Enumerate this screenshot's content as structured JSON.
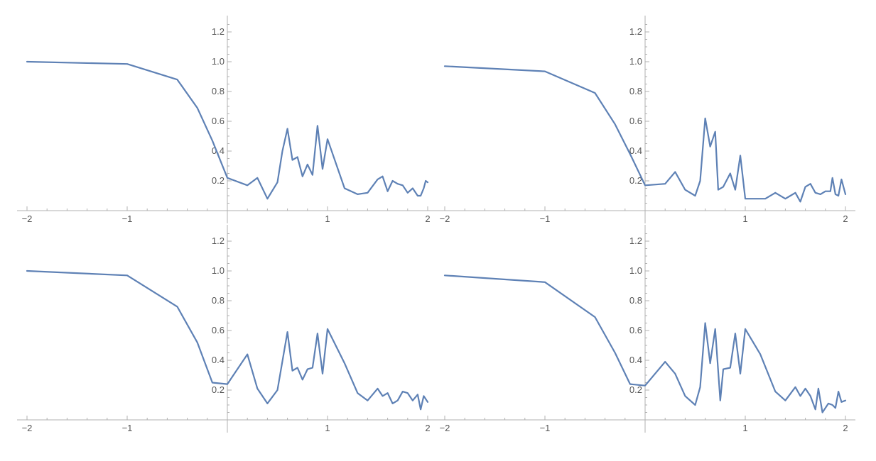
{
  "colors": {
    "series": "#5e81b5",
    "axis": "#b0b0b0",
    "text": "#555555"
  },
  "chart_data": [
    {
      "type": "line",
      "xlim": [
        -2,
        2
      ],
      "ylim": [
        0,
        1.25
      ],
      "xticks": [
        -2,
        -1,
        1,
        2
      ],
      "xtick_labels": [
        "−2",
        "−1",
        "1",
        "2"
      ],
      "yticks": [
        0.2,
        0.4,
        0.6,
        0.8,
        1.0,
        1.2
      ],
      "ytick_labels": [
        "0.2",
        "0.4",
        "0.6",
        "0.8",
        "1.0",
        "1.2"
      ],
      "series": [
        {
          "x": [
            -2,
            -1,
            -0.5,
            -0.3,
            -0.15,
            0,
            0.2,
            0.3,
            0.4,
            0.5,
            0.55,
            0.6,
            0.65,
            0.7,
            0.75,
            0.8,
            0.85,
            0.9,
            0.95,
            1.0,
            1.17,
            1.3,
            1.4,
            1.5,
            1.55,
            1.6,
            1.65,
            1.7,
            1.75,
            1.8,
            1.85,
            1.9,
            1.93,
            1.96,
            1.98,
            2.0
          ],
          "y": [
            1.0,
            0.985,
            0.88,
            0.69,
            0.47,
            0.22,
            0.17,
            0.22,
            0.08,
            0.19,
            0.4,
            0.55,
            0.34,
            0.36,
            0.23,
            0.31,
            0.24,
            0.57,
            0.28,
            0.48,
            0.15,
            0.11,
            0.12,
            0.21,
            0.23,
            0.13,
            0.2,
            0.18,
            0.17,
            0.12,
            0.15,
            0.1,
            0.1,
            0.15,
            0.2,
            0.19
          ]
        }
      ]
    },
    {
      "type": "line",
      "xlim": [
        -2,
        2
      ],
      "ylim": [
        0,
        1.25
      ],
      "xticks": [
        -2,
        -1,
        1,
        2
      ],
      "xtick_labels": [
        "−2",
        "−1",
        "1",
        "2"
      ],
      "yticks": [
        0.2,
        0.4,
        0.6,
        0.8,
        1.0,
        1.2
      ],
      "ytick_labels": [
        "0.2",
        "0.4",
        "0.6",
        "0.8",
        "1.0",
        "1.2"
      ],
      "series": [
        {
          "x": [
            -2,
            -1,
            -0.5,
            -0.3,
            -0.15,
            0,
            0.2,
            0.3,
            0.4,
            0.5,
            0.55,
            0.6,
            0.65,
            0.7,
            0.73,
            0.78,
            0.85,
            0.9,
            0.95,
            1.0,
            1.2,
            1.3,
            1.4,
            1.45,
            1.5,
            1.55,
            1.6,
            1.65,
            1.7,
            1.75,
            1.8,
            1.85,
            1.87,
            1.9,
            1.93,
            1.96,
            2.0
          ],
          "y": [
            0.97,
            0.935,
            0.79,
            0.58,
            0.38,
            0.17,
            0.18,
            0.26,
            0.14,
            0.1,
            0.2,
            0.62,
            0.43,
            0.53,
            0.14,
            0.16,
            0.25,
            0.14,
            0.37,
            0.08,
            0.08,
            0.12,
            0.08,
            0.1,
            0.12,
            0.06,
            0.16,
            0.18,
            0.12,
            0.11,
            0.13,
            0.13,
            0.22,
            0.11,
            0.1,
            0.21,
            0.11
          ]
        }
      ]
    },
    {
      "type": "line",
      "xlim": [
        -2,
        2
      ],
      "ylim": [
        0,
        1.25
      ],
      "xticks": [
        -2,
        -1,
        1,
        2
      ],
      "xtick_labels": [
        "−2",
        "−1",
        "1",
        "2"
      ],
      "yticks": [
        0.2,
        0.4,
        0.6,
        0.8,
        1.0,
        1.2
      ],
      "ytick_labels": [
        "0.2",
        "0.4",
        "0.6",
        "0.8",
        "1.0",
        "1.2"
      ],
      "series": [
        {
          "x": [
            -2,
            -1,
            -0.5,
            -0.3,
            -0.15,
            0,
            0.2,
            0.3,
            0.4,
            0.5,
            0.6,
            0.65,
            0.7,
            0.75,
            0.8,
            0.85,
            0.9,
            0.95,
            1.0,
            1.17,
            1.3,
            1.4,
            1.5,
            1.55,
            1.6,
            1.65,
            1.7,
            1.75,
            1.8,
            1.85,
            1.9,
            1.93,
            1.96,
            2.0
          ],
          "y": [
            1.0,
            0.97,
            0.76,
            0.52,
            0.25,
            0.24,
            0.44,
            0.21,
            0.11,
            0.2,
            0.59,
            0.33,
            0.35,
            0.27,
            0.34,
            0.35,
            0.58,
            0.31,
            0.61,
            0.38,
            0.18,
            0.13,
            0.21,
            0.16,
            0.18,
            0.11,
            0.13,
            0.19,
            0.18,
            0.13,
            0.17,
            0.07,
            0.16,
            0.12
          ]
        }
      ]
    },
    {
      "type": "line",
      "xlim": [
        -2,
        2
      ],
      "ylim": [
        0,
        1.25
      ],
      "xticks": [
        -2,
        -1,
        1,
        2
      ],
      "xtick_labels": [
        "−2",
        "−1",
        "1",
        "2"
      ],
      "yticks": [
        0.2,
        0.4,
        0.6,
        0.8,
        1.0,
        1.2
      ],
      "ytick_labels": [
        "0.2",
        "0.4",
        "0.6",
        "0.8",
        "1.0",
        "1.2"
      ],
      "series": [
        {
          "x": [
            -2,
            -1,
            -0.5,
            -0.3,
            -0.15,
            0,
            0.2,
            0.3,
            0.4,
            0.5,
            0.55,
            0.6,
            0.65,
            0.7,
            0.75,
            0.78,
            0.85,
            0.9,
            0.95,
            1.0,
            1.15,
            1.3,
            1.4,
            1.5,
            1.55,
            1.6,
            1.65,
            1.7,
            1.73,
            1.77,
            1.83,
            1.87,
            1.9,
            1.93,
            1.96,
            2.0
          ],
          "y": [
            0.97,
            0.925,
            0.69,
            0.45,
            0.24,
            0.23,
            0.39,
            0.31,
            0.16,
            0.1,
            0.22,
            0.65,
            0.38,
            0.61,
            0.13,
            0.34,
            0.35,
            0.58,
            0.31,
            0.61,
            0.44,
            0.19,
            0.13,
            0.22,
            0.16,
            0.21,
            0.16,
            0.07,
            0.21,
            0.05,
            0.11,
            0.1,
            0.08,
            0.19,
            0.12,
            0.13
          ]
        }
      ]
    }
  ]
}
